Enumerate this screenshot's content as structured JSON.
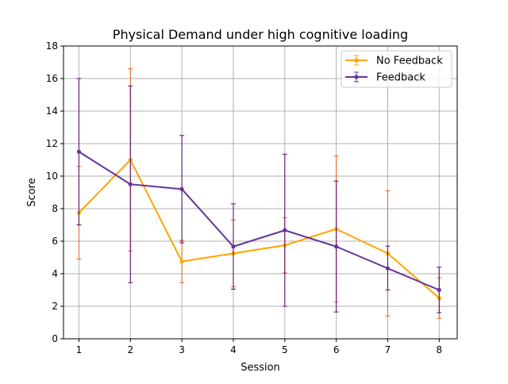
{
  "chart_data": {
    "type": "line",
    "title": "Physical Demand under high cognitive loading",
    "xlabel": "Session",
    "ylabel": "Score",
    "x": [
      1,
      2,
      3,
      4,
      5,
      6,
      7,
      8
    ],
    "xlim": [
      0.7,
      8.35
    ],
    "ylim": [
      0,
      18
    ],
    "xticks": [
      "1",
      "2",
      "3",
      "4",
      "5",
      "6",
      "7",
      "8"
    ],
    "yticks": [
      "0",
      "2",
      "4",
      "6",
      "8",
      "10",
      "12",
      "14",
      "16",
      "18"
    ],
    "grid": true,
    "legend_position": "upper right",
    "series": [
      {
        "name": "No Feedback",
        "color": "#ffa500",
        "errorbar_color": "#e8641a",
        "values": [
          7.75,
          11.0,
          4.75,
          5.25,
          5.75,
          6.75,
          5.25,
          2.5
        ],
        "lower": [
          4.9,
          5.4,
          3.45,
          3.2,
          4.05,
          2.25,
          1.4,
          1.25
        ],
        "upper": [
          10.6,
          16.6,
          6.05,
          7.3,
          7.45,
          11.25,
          9.1,
          3.75
        ]
      },
      {
        "name": "Feedback",
        "color": "#663399",
        "errorbar_color": "#5a0a70",
        "values": [
          11.5,
          9.5,
          9.2,
          5.67,
          6.67,
          5.67,
          4.33,
          3.0
        ],
        "lower": [
          7.0,
          3.45,
          5.9,
          3.05,
          2.0,
          1.65,
          3.0,
          1.6
        ],
        "upper": [
          16.0,
          15.55,
          12.5,
          8.3,
          11.35,
          9.7,
          5.7,
          4.4
        ]
      }
    ]
  }
}
